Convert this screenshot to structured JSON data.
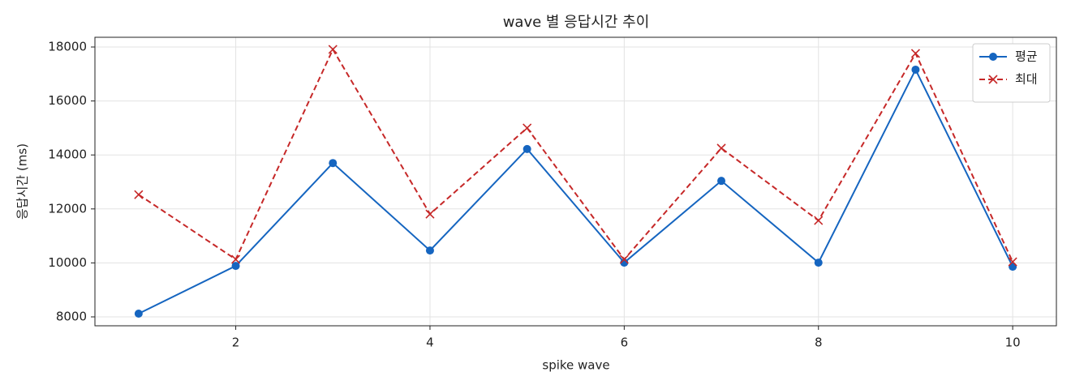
{
  "chart_data": {
    "type": "line",
    "title": "wave 별 응답시간 추이",
    "x_label": "spike wave",
    "y_label": "응답시간 (ms)",
    "x": [
      1,
      2,
      3,
      4,
      5,
      6,
      7,
      8,
      9,
      10
    ],
    "series": [
      {
        "name": "평균",
        "color": "#1565c0",
        "marker": "o",
        "linestyle": "solid",
        "values": [
          8120,
          9890,
          13700,
          10460,
          14220,
          10010,
          13040,
          10010,
          17160,
          9860
        ]
      },
      {
        "name": "최대",
        "color": "#c62828",
        "marker": "x",
        "linestyle": "dashed",
        "values": [
          12530,
          10130,
          17910,
          11810,
          15000,
          10130,
          14250,
          11570,
          17760,
          10040
        ]
      }
    ],
    "xlim": [
      0.55,
      10.45
    ],
    "ylim": [
      7670,
      18360
    ],
    "xticks": [
      2,
      4,
      6,
      8,
      10
    ],
    "yticks": [
      8000,
      10000,
      12000,
      14000,
      16000,
      18000
    ],
    "grid": true,
    "legend": "upper right"
  }
}
